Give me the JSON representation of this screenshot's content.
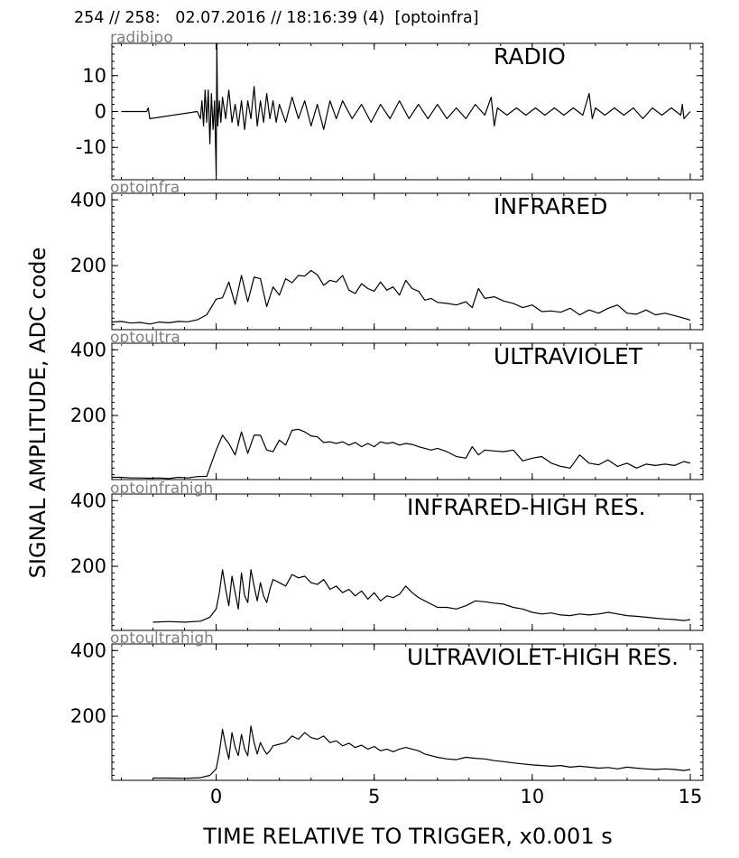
{
  "header": "254 // 258:   02.07.2016 // 18:16:39 (4)  [optoinfra]",
  "ylabel": "SIGNAL AMPLITUDE,  ADC code",
  "xlabel": "TIME RELATIVE TO TRIGGER,   x0.001 s",
  "colors": {
    "line": "#000000",
    "channel_label": "#808080",
    "axes": "#000000"
  },
  "chart_data": [
    {
      "type": "line",
      "channel": "radibipo",
      "title": "RADIO",
      "xlim": [
        -3.3,
        15.4
      ],
      "ylim": [
        -19,
        19
      ],
      "yticks": [
        -10,
        0,
        10
      ],
      "series": [
        {
          "x": [
            -3.0,
            -2.2,
            -2.15,
            -2.1,
            -0.6,
            -0.5,
            -0.45,
            -0.4,
            -0.35,
            -0.3,
            -0.25,
            -0.2,
            -0.15,
            -0.1,
            -0.05,
            0.0,
            0.02,
            0.05,
            0.1,
            0.15,
            0.2,
            0.3,
            0.4,
            0.5,
            0.6,
            0.7,
            0.8,
            0.9,
            1.0,
            1.1,
            1.2,
            1.3,
            1.4,
            1.5,
            1.6,
            1.7,
            1.8,
            1.9,
            2.0,
            2.2,
            2.4,
            2.6,
            2.8,
            3.0,
            3.2,
            3.4,
            3.6,
            3.8,
            4.0,
            4.3,
            4.6,
            4.9,
            5.2,
            5.5,
            5.8,
            6.1,
            6.4,
            6.7,
            7.0,
            7.3,
            7.6,
            7.9,
            8.2,
            8.5,
            8.7,
            8.8,
            8.9,
            9.2,
            9.5,
            9.8,
            10.1,
            10.4,
            10.7,
            11.0,
            11.3,
            11.6,
            11.8,
            11.9,
            12.0,
            12.3,
            12.6,
            12.9,
            13.2,
            13.5,
            13.8,
            14.1,
            14.4,
            14.7,
            14.75,
            14.8,
            15.0
          ],
          "y": [
            0,
            0,
            1,
            -2,
            0,
            -2,
            3,
            -4,
            6,
            -3,
            6,
            -9,
            5,
            -5,
            3,
            -18,
            19,
            -4,
            3,
            -3,
            4,
            -2,
            6,
            -3,
            2,
            -4,
            3,
            -5,
            3,
            -2,
            7,
            -4,
            3,
            -3,
            5,
            -2,
            3,
            -3,
            2,
            -3,
            4,
            -2,
            3,
            -4,
            2,
            -5,
            3,
            -2,
            3,
            -2,
            2,
            -3,
            2,
            -2,
            3,
            -2,
            2,
            -2,
            2,
            -2,
            1,
            -2,
            2,
            -1,
            4,
            -4,
            1,
            -1,
            1,
            -1,
            1,
            -1,
            1,
            -1,
            1,
            -1,
            5,
            -2,
            1,
            -1,
            1,
            -1,
            1,
            -2,
            1,
            -1,
            1,
            -1,
            2,
            -2,
            0
          ]
        }
      ]
    },
    {
      "type": "line",
      "channel": "optoinfra",
      "title": "INFRARED",
      "xlim": [
        -3.3,
        15.4
      ],
      "ylim": [
        5,
        420
      ],
      "yticks": [
        200,
        400
      ],
      "series": [
        {
          "x": [
            -3.3,
            -3.0,
            -2.7,
            -2.4,
            -2.1,
            -1.8,
            -1.5,
            -1.2,
            -0.9,
            -0.6,
            -0.3,
            0.0,
            0.2,
            0.4,
            0.6,
            0.8,
            1.0,
            1.2,
            1.4,
            1.6,
            1.8,
            2.0,
            2.2,
            2.4,
            2.6,
            2.8,
            3.0,
            3.2,
            3.4,
            3.6,
            3.8,
            4.0,
            4.2,
            4.4,
            4.6,
            4.8,
            5.0,
            5.2,
            5.4,
            5.6,
            5.8,
            6.0,
            6.2,
            6.4,
            6.6,
            6.8,
            7.0,
            7.3,
            7.6,
            7.9,
            8.1,
            8.3,
            8.5,
            8.8,
            9.1,
            9.4,
            9.7,
            10.0,
            10.3,
            10.6,
            10.9,
            11.2,
            11.5,
            11.8,
            12.1,
            12.4,
            12.7,
            13.0,
            13.3,
            13.6,
            13.9,
            14.2,
            14.5,
            14.8,
            15.0
          ],
          "y": [
            28,
            30,
            25,
            27,
            22,
            28,
            26,
            30,
            29,
            35,
            50,
            98,
            102,
            150,
            82,
            170,
            90,
            165,
            160,
            75,
            135,
            110,
            160,
            148,
            170,
            168,
            185,
            172,
            140,
            155,
            150,
            170,
            125,
            115,
            145,
            130,
            122,
            150,
            125,
            135,
            110,
            155,
            130,
            122,
            95,
            100,
            88,
            85,
            80,
            90,
            72,
            130,
            100,
            105,
            92,
            85,
            72,
            80,
            60,
            62,
            58,
            70,
            50,
            65,
            55,
            70,
            80,
            55,
            52,
            65,
            50,
            55,
            48,
            40,
            34
          ]
        }
      ]
    },
    {
      "type": "line",
      "channel": "optoultra",
      "title": "ULTRAVIOLET",
      "xlim": [
        -3.3,
        15.4
      ],
      "ylim": [
        5,
        420
      ],
      "yticks": [
        200,
        400
      ],
      "series": [
        {
          "x": [
            -3.3,
            -3.0,
            -2.7,
            -2.4,
            -2.1,
            -1.8,
            -1.5,
            -1.2,
            -0.9,
            -0.6,
            -0.3,
            0.0,
            0.2,
            0.4,
            0.6,
            0.8,
            1.0,
            1.2,
            1.4,
            1.6,
            1.8,
            2.0,
            2.2,
            2.4,
            2.6,
            2.8,
            3.0,
            3.2,
            3.4,
            3.6,
            3.8,
            4.0,
            4.2,
            4.4,
            4.6,
            4.8,
            5.0,
            5.2,
            5.4,
            5.6,
            5.8,
            6.0,
            6.2,
            6.4,
            6.6,
            6.8,
            7.0,
            7.3,
            7.6,
            7.9,
            8.1,
            8.3,
            8.5,
            8.8,
            9.1,
            9.4,
            9.7,
            10.0,
            10.3,
            10.6,
            10.9,
            11.2,
            11.5,
            11.8,
            12.1,
            12.4,
            12.7,
            13.0,
            13.3,
            13.6,
            13.9,
            14.2,
            14.5,
            14.8,
            15.0
          ],
          "y": [
            12,
            12,
            10,
            10,
            9,
            10,
            8,
            12,
            10,
            14,
            15,
            95,
            140,
            115,
            80,
            150,
            85,
            140,
            140,
            95,
            90,
            125,
            110,
            155,
            158,
            150,
            138,
            135,
            118,
            120,
            115,
            120,
            110,
            118,
            105,
            115,
            105,
            120,
            115,
            118,
            110,
            115,
            112,
            105,
            100,
            95,
            100,
            90,
            75,
            70,
            105,
            80,
            95,
            92,
            90,
            95,
            62,
            70,
            75,
            55,
            45,
            40,
            80,
            55,
            50,
            65,
            45,
            55,
            40,
            52,
            48,
            52,
            48,
            60,
            55
          ]
        }
      ]
    },
    {
      "type": "line",
      "channel": "optoinfrahigh",
      "title": "INFRARED-HIGH RES.",
      "xlim": [
        -3.3,
        15.4
      ],
      "ylim": [
        5,
        420
      ],
      "yticks": [
        200,
        400
      ],
      "series": [
        {
          "x": [
            -2.0,
            -1.5,
            -1.0,
            -0.5,
            -0.2,
            0.0,
            0.1,
            0.2,
            0.3,
            0.4,
            0.5,
            0.6,
            0.7,
            0.8,
            0.9,
            1.0,
            1.1,
            1.2,
            1.3,
            1.4,
            1.5,
            1.6,
            1.7,
            1.8,
            2.0,
            2.2,
            2.4,
            2.6,
            2.8,
            3.0,
            3.2,
            3.4,
            3.6,
            3.8,
            4.0,
            4.2,
            4.4,
            4.6,
            4.8,
            5.0,
            5.2,
            5.4,
            5.6,
            5.8,
            6.0,
            6.2,
            6.4,
            6.6,
            6.8,
            7.0,
            7.3,
            7.6,
            7.9,
            8.2,
            8.5,
            8.8,
            9.1,
            9.4,
            9.7,
            10.0,
            10.3,
            10.6,
            10.9,
            11.2,
            11.5,
            11.8,
            12.1,
            12.4,
            12.7,
            13.0,
            13.3,
            13.6,
            13.9,
            14.2,
            14.5,
            14.8,
            15.0
          ],
          "y": [
            30,
            32,
            30,
            33,
            45,
            70,
            120,
            190,
            130,
            80,
            170,
            120,
            70,
            180,
            110,
            90,
            190,
            140,
            95,
            150,
            110,
            90,
            130,
            160,
            150,
            140,
            175,
            165,
            170,
            150,
            145,
            160,
            130,
            140,
            120,
            130,
            110,
            125,
            100,
            120,
            95,
            110,
            105,
            115,
            140,
            120,
            105,
            95,
            85,
            75,
            75,
            70,
            80,
            95,
            92,
            88,
            85,
            75,
            70,
            60,
            55,
            58,
            52,
            50,
            55,
            52,
            55,
            60,
            55,
            50,
            48,
            45,
            42,
            40,
            38,
            35,
            38
          ]
        }
      ]
    },
    {
      "type": "line",
      "channel": "optoultrahigh",
      "title": "ULTRAVIOLET-HIGH RES.",
      "xlim": [
        -3.3,
        15.4
      ],
      "ylim": [
        5,
        420
      ],
      "yticks": [
        200,
        400
      ],
      "series": [
        {
          "x": [
            -2.0,
            -1.5,
            -1.0,
            -0.5,
            -0.2,
            0.0,
            0.1,
            0.2,
            0.3,
            0.4,
            0.5,
            0.6,
            0.7,
            0.8,
            0.9,
            1.0,
            1.1,
            1.2,
            1.3,
            1.4,
            1.5,
            1.6,
            1.7,
            1.8,
            2.0,
            2.2,
            2.4,
            2.6,
            2.8,
            3.0,
            3.2,
            3.4,
            3.6,
            3.8,
            4.0,
            4.2,
            4.4,
            4.6,
            4.8,
            5.0,
            5.2,
            5.4,
            5.6,
            5.8,
            6.0,
            6.2,
            6.4,
            6.6,
            6.8,
            7.0,
            7.3,
            7.6,
            7.9,
            8.2,
            8.5,
            8.8,
            9.1,
            9.4,
            9.7,
            10.0,
            10.3,
            10.6,
            10.9,
            11.2,
            11.5,
            11.8,
            12.1,
            12.4,
            12.7,
            13.0,
            13.3,
            13.6,
            13.9,
            14.2,
            14.5,
            14.8,
            15.0
          ],
          "y": [
            12,
            12,
            11,
            13,
            20,
            40,
            90,
            160,
            110,
            70,
            150,
            105,
            80,
            145,
            100,
            80,
            170,
            120,
            85,
            120,
            100,
            85,
            95,
            110,
            115,
            120,
            140,
            130,
            150,
            135,
            130,
            140,
            120,
            125,
            110,
            118,
            105,
            112,
            100,
            108,
            95,
            100,
            92,
            100,
            105,
            100,
            95,
            85,
            80,
            75,
            70,
            68,
            75,
            72,
            70,
            65,
            62,
            58,
            55,
            52,
            50,
            48,
            50,
            45,
            48,
            45,
            42,
            44,
            40,
            45,
            42,
            40,
            38,
            40,
            38,
            35,
            38
          ]
        }
      ]
    }
  ]
}
